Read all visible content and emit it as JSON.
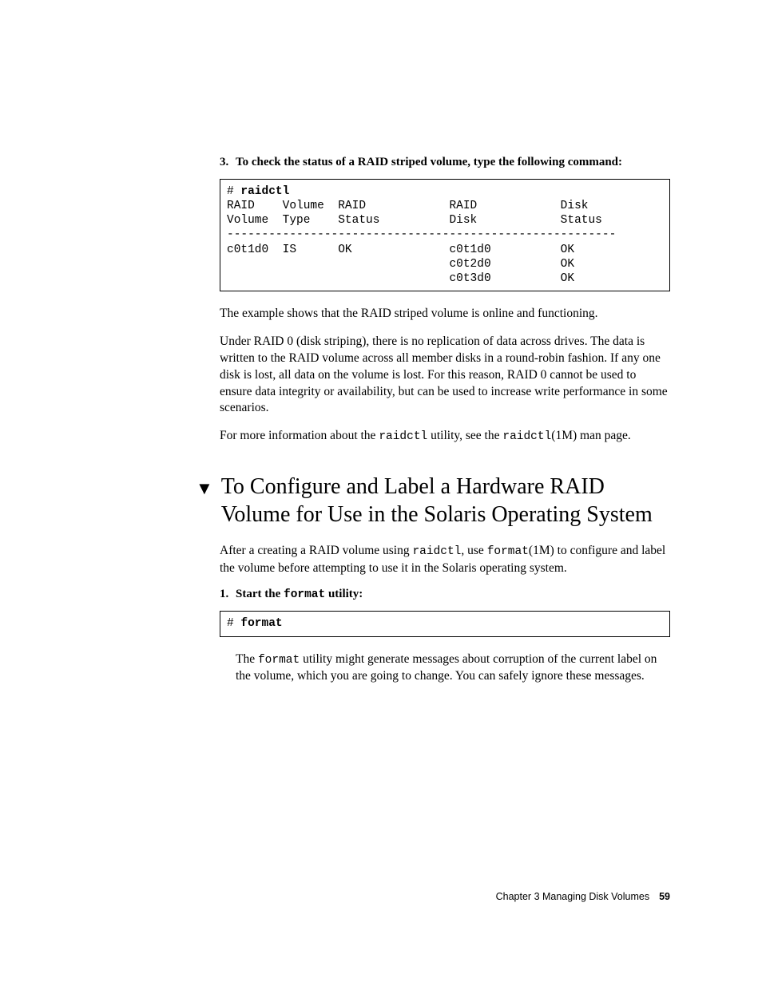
{
  "step3": {
    "num": "3.",
    "text": "To check the status of a RAID striped volume, type the following command:"
  },
  "codebox1": {
    "prompt": "# ",
    "cmd": "raidctl",
    "line_hdr1": "RAID    Volume  RAID            RAID            Disk",
    "line_hdr2": "Volume  Type    Status          Disk            Status",
    "sep": "--------------------------------------------------------",
    "row1": "c0t1d0  IS      OK              c0t1d0          OK",
    "row2": "                                c0t2d0          OK",
    "row3": "                                c0t3d0          OK"
  },
  "para1": "The example shows that the RAID striped volume is online and functioning.",
  "para2": "Under RAID 0 (disk striping), there is no replication of data across drives. The data is written to the RAID volume across all member disks in a round-robin fashion. If any one disk is lost, all data on the volume is lost. For this reason, RAID 0 cannot be used to ensure data integrity or availability, but can be used to increase write performance in some scenarios.",
  "para3_a": "For more information about the ",
  "para3_b": "raidctl",
  "para3_c": " utility, see the ",
  "para3_d": "raidctl",
  "para3_e": "(1M) man page.",
  "section_marker": "▼",
  "section_title": "To Configure and Label a Hardware RAID Volume for Use in the Solaris Operating System",
  "para4_a": "After a creating a RAID volume using ",
  "para4_b": "raidctl",
  "para4_c": ", use ",
  "para4_d": "format",
  "para4_e": "(1M) to configure and label the volume before attempting to use it in the Solaris operating system.",
  "step1": {
    "num": "1.",
    "text_a": "Start the ",
    "text_b": "format",
    "text_c": " utility:"
  },
  "codebox2": {
    "prompt": "# ",
    "cmd": "format"
  },
  "para5_a": "The ",
  "para5_b": "format",
  "para5_c": " utility might generate messages about corruption of the current label on the volume, which you are going to change. You can safely ignore these messages.",
  "footer": {
    "text": "Chapter 3   Managing Disk Volumes",
    "page": "59"
  }
}
